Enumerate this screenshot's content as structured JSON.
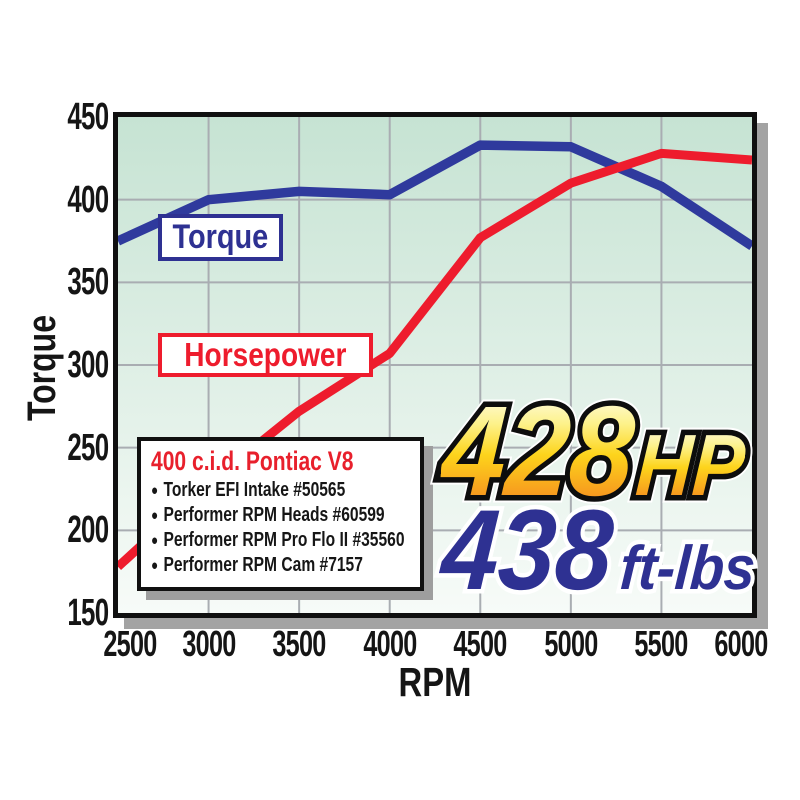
{
  "chart_data": {
    "type": "line",
    "title": "",
    "xlabel": "RPM",
    "ylabel": "Torque",
    "x": [
      2500,
      3000,
      3500,
      4000,
      4500,
      5000,
      5500,
      6000
    ],
    "xlim": [
      2500,
      6000
    ],
    "ylim": [
      150,
      450
    ],
    "yticks": [
      450,
      400,
      350,
      300,
      250,
      200,
      150
    ],
    "grid": true,
    "legend_position": "labeled boxes on plot",
    "series": [
      {
        "name": "Torque",
        "color": "#2f3a9d",
        "unit": "ft-lbs",
        "values": [
          375,
          400,
          405,
          403,
          433,
          432,
          408,
          372
        ]
      },
      {
        "name": "Horsepower",
        "color": "#ee1c2d",
        "unit": "hp",
        "values": [
          178,
          228,
          272,
          307,
          377,
          410,
          428,
          424
        ]
      }
    ]
  },
  "spec_box": {
    "title": "400 c.i.d. Pontiac V8",
    "items": [
      "Torker EFI Intake #50565",
      "Performer RPM Heads #60599",
      "Performer RPM Pro Flo II #35560",
      "Performer RPM Cam #7157"
    ]
  },
  "results": {
    "hp_value": "428",
    "hp_unit": "HP",
    "torque_value": "438",
    "torque_unit": "ft-lbs"
  },
  "colors": {
    "torque_blue": "#2f3a9d",
    "horsepower_red": "#ee1c2d",
    "label_blue": "#2e3192",
    "spec_title_red": "#e8202c",
    "plot_bg_top": "#c6e3d3",
    "plot_bg_bottom": "#f7fbf8",
    "gridline": "#a9adb2",
    "chart_shadow": "#a3a3a3",
    "hp_gradient_top": "#fefbe3",
    "hp_gradient_mid": "#fdd41c",
    "hp_gradient_bottom": "#f6921e"
  }
}
